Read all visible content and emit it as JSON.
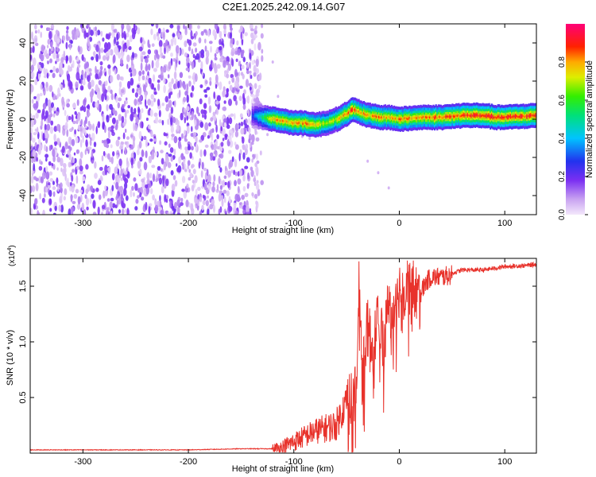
{
  "title": "C2E1.2025.242.09.14.G07",
  "colorbar": {
    "label": "Normalized spectral amplitude",
    "ticks": [
      0.0,
      0.2,
      0.4,
      0.6,
      0.8
    ],
    "tick_labels": [
      "0.0",
      "0.2",
      "0.4",
      "0.6",
      "0.8"
    ],
    "range": [
      0,
      1
    ],
    "colormap": "rainbow (light violet - violet - blue - cyan - green - yellow - red - magenta)"
  },
  "chart_data": [
    {
      "type": "heatmap",
      "title": "",
      "xlabel": "Height of straight line (km)",
      "ylabel": "Frequency (Hz)",
      "xlim": [
        -350,
        130
      ],
      "ylim": [
        -50,
        50
      ],
      "x_ticks": [
        -300,
        -200,
        -100,
        0,
        100
      ],
      "x_tick_labels": [
        "-300",
        "-200",
        "-100",
        "0",
        "100"
      ],
      "y_ticks": [
        -40,
        -20,
        0,
        20,
        40
      ],
      "y_tick_labels": [
        "-40",
        "-20",
        "0",
        "20",
        "40"
      ],
      "noise_region": {
        "x_range": [
          -350,
          -130
        ],
        "amplitude_range": [
          0.0,
          0.15
        ]
      },
      "signal_band": {
        "x": [
          -140,
          -130,
          -120,
          -110,
          -100,
          -90,
          -80,
          -70,
          -60,
          -50,
          -45,
          -40,
          -30,
          -20,
          -10,
          0,
          20,
          40,
          60,
          80,
          90,
          100,
          130
        ],
        "center_freq": [
          2,
          1,
          0,
          -1,
          -2,
          -2,
          -3,
          -2,
          0,
          3,
          5,
          4,
          2,
          1,
          1,
          0,
          1,
          1,
          2,
          2,
          1,
          1,
          2
        ],
        "peak_amplitude": [
          0.3,
          0.55,
          0.8,
          0.85,
          0.8,
          0.85,
          0.8,
          0.7,
          0.75,
          0.85,
          0.9,
          0.85,
          0.8,
          0.85,
          0.8,
          0.85,
          0.85,
          0.88,
          0.9,
          0.9,
          0.95,
          0.92,
          0.9
        ]
      }
    },
    {
      "type": "line",
      "title": "",
      "xlabel": "Height of straight line (km)",
      "ylabel": "SNR (10 * v/v)",
      "y_multiplier": "(x10^4)",
      "xlim": [
        -350,
        130
      ],
      "ylim": [
        0,
        1.75
      ],
      "x_ticks": [
        -300,
        -200,
        -100,
        0,
        100
      ],
      "x_tick_labels": [
        "-300",
        "-200",
        "-100",
        "0",
        "100"
      ],
      "y_ticks": [
        0.5,
        1.0,
        1.5
      ],
      "y_tick_labels": [
        "0.5",
        "1.0",
        "1.5"
      ],
      "line_color": "#e8322b",
      "series": [
        {
          "x": [
            -350,
            -300,
            -250,
            -200,
            -150,
            -120,
            -110,
            -100,
            -90,
            -80,
            -70,
            -60,
            -50,
            -45,
            -40,
            -38,
            -35,
            -30,
            -25,
            -20,
            -15,
            -10,
            -5,
            0,
            5,
            8,
            10,
            12,
            15,
            20,
            25,
            30,
            40,
            50,
            60,
            80,
            100,
            120,
            130
          ],
          "values": [
            0.03,
            0.03,
            0.03,
            0.03,
            0.04,
            0.04,
            0.07,
            0.12,
            0.17,
            0.22,
            0.25,
            0.28,
            0.5,
            0.55,
            0.7,
            1.65,
            0.8,
            1.2,
            0.9,
            1.4,
            1.0,
            1.45,
            1.2,
            1.55,
            1.5,
            1.65,
            1.55,
            1.6,
            1.5,
            1.45,
            1.55,
            1.6,
            1.6,
            1.62,
            1.65,
            1.65,
            1.68,
            1.69,
            1.7
          ]
        }
      ]
    }
  ]
}
